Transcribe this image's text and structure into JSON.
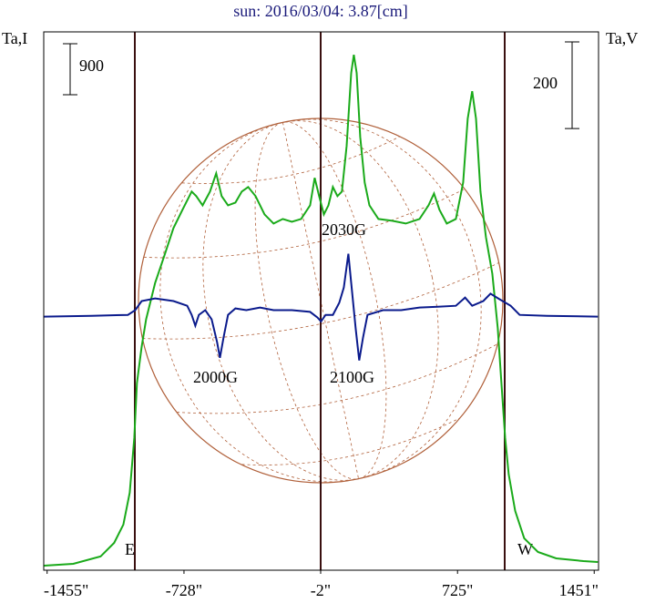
{
  "chart_data": {
    "type": "line",
    "title": "sun: 2016/03/04: 3.87[cm]",
    "y_label": "Ta,I",
    "y2_label": "Ta,V",
    "xlim": [
      -1473,
      1474
    ],
    "xticks": [
      {
        "value": -1455,
        "label": "-1455\""
      },
      {
        "value": -728,
        "label": "-728\""
      },
      {
        "value": -2,
        "label": "-2\""
      },
      {
        "value": 725,
        "label": "725\""
      },
      {
        "value": 1451,
        "label": "1451\""
      }
    ],
    "ylim": [
      0,
      9500
    ],
    "y2lim": [
      -585,
      657
    ],
    "scale_bars": {
      "y": 900,
      "y2": 200
    },
    "annotations": [
      "E",
      "W",
      "2030G",
      "2000G",
      "2100G"
    ],
    "series": [
      {
        "name": "I",
        "color": "#1aaa1a",
        "axis": "y",
        "x": [
          -1471,
          -1316,
          -1171,
          -1099,
          -1050,
          -1016,
          -992,
          -978,
          -953,
          -929,
          -881,
          -832,
          -784,
          -736,
          -687,
          -663,
          -629,
          -590,
          -557,
          -528,
          -494,
          -455,
          -421,
          -387,
          -348,
          -300,
          -252,
          -203,
          -155,
          -106,
          -58,
          -34,
          -10,
          15,
          39,
          63,
          87,
          111,
          136,
          160,
          174,
          189,
          208,
          232,
          257,
          305,
          378,
          450,
          523,
          571,
          600,
          629,
          668,
          716,
          755,
          779,
          803,
          823,
          847,
          876,
          910,
          939,
          958,
          978,
          997,
          1031,
          1079,
          1152,
          1249,
          1394,
          1470
        ],
        "values": [
          80,
          113,
          242,
          483,
          805,
          1369,
          2335,
          3301,
          3945,
          4428,
          5072,
          5555,
          6038,
          6360,
          6682,
          6601,
          6440,
          6682,
          7004,
          6601,
          6440,
          6488,
          6682,
          6762,
          6601,
          6279,
          6118,
          6199,
          6150,
          6199,
          6440,
          6923,
          6601,
          6279,
          6440,
          6762,
          6601,
          6682,
          7487,
          8775,
          9097,
          8775,
          7648,
          6843,
          6440,
          6199,
          6166,
          6118,
          6199,
          6440,
          6649,
          6360,
          6118,
          6199,
          6843,
          7970,
          8453,
          7970,
          6682,
          5877,
          5233,
          4267,
          3301,
          2335,
          1691,
          1047,
          564,
          322,
          209,
          161,
          145
        ]
      },
      {
        "name": "V",
        "color": "#0a1a8c",
        "axis": "y2",
        "x": [
          -1471,
          -1220,
          -1026,
          -987,
          -953,
          -881,
          -784,
          -711,
          -687,
          -668,
          -649,
          -615,
          -581,
          -552,
          -537,
          -518,
          -494,
          -455,
          -397,
          -324,
          -252,
          -155,
          -58,
          -19,
          0,
          24,
          63,
          97,
          121,
          145,
          160,
          184,
          203,
          223,
          247,
          329,
          426,
          523,
          620,
          716,
          765,
          803,
          862,
          900,
          949,
          1007,
          1055,
          1200,
          1470
        ],
        "values": [
          0,
          2,
          4,
          15,
          36,
          42,
          36,
          25,
          4,
          -21,
          4,
          15,
          -6,
          -59,
          -95,
          -48,
          4,
          19,
          15,
          21,
          15,
          15,
          11,
          -2,
          -11,
          4,
          4,
          32,
          67,
          145,
          78,
          -27,
          -101,
          -48,
          4,
          15,
          15,
          21,
          23,
          25,
          44,
          25,
          36,
          53,
          40,
          25,
          4,
          2,
          0
        ]
      }
    ]
  }
}
